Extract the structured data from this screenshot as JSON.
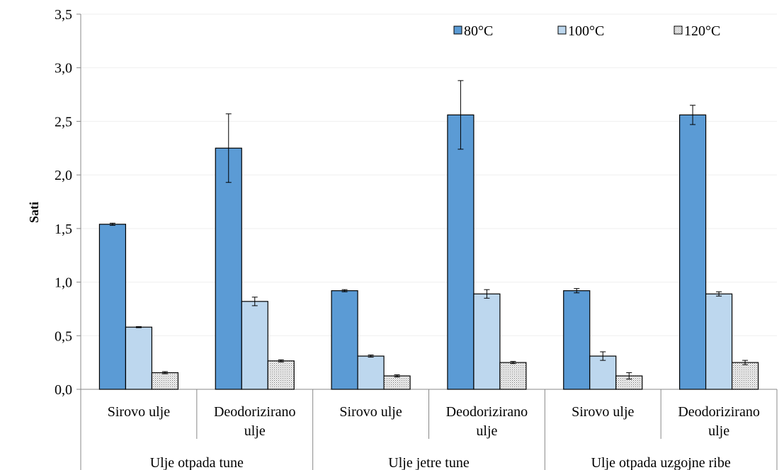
{
  "chart_data": {
    "type": "bar",
    "ylabel": "Sati",
    "xlabel": "",
    "ylim": [
      0,
      3.5
    ],
    "yticks": [
      "0,0",
      "0,5",
      "1,0",
      "1,5",
      "2,0",
      "2,5",
      "3,0",
      "3,5"
    ],
    "ytick_values": [
      0,
      0.5,
      1.0,
      1.5,
      2.0,
      2.5,
      3.0,
      3.5
    ],
    "grid": true,
    "legend_position": "top-right",
    "groups": [
      {
        "label": "Ulje otpada tune",
        "categories": [
          [
            "Sirovo ulje"
          ],
          [
            "Deodorizirano",
            "ulje"
          ]
        ]
      },
      {
        "label": "Ulje jetre tune",
        "categories": [
          [
            "Sirovo ulje"
          ],
          [
            "Deodorizirano",
            "ulje"
          ]
        ]
      },
      {
        "label": "Ulje otpada uzgojne ribe",
        "categories": [
          [
            "Sirovo ulje"
          ],
          [
            "Deodorizirano",
            "ulje"
          ]
        ]
      }
    ],
    "series": [
      {
        "name": "80°C",
        "color": "#5b9bd5",
        "pattern": "solid",
        "values": [
          1.54,
          2.25,
          0.92,
          2.56,
          0.92,
          2.56
        ],
        "errors": [
          0.01,
          0.32,
          0.01,
          0.32,
          0.02,
          0.09
        ]
      },
      {
        "name": "100°C",
        "color": "#bdd7ee",
        "pattern": "solid",
        "values": [
          0.58,
          0.82,
          0.31,
          0.89,
          0.31,
          0.89
        ],
        "errors": [
          0.005,
          0.04,
          0.01,
          0.04,
          0.04,
          0.02
        ]
      },
      {
        "name": "120°C",
        "color": "#e8e8e8",
        "pattern": "dots",
        "values": [
          0.155,
          0.265,
          0.125,
          0.25,
          0.125,
          0.25
        ],
        "errors": [
          0.01,
          0.01,
          0.01,
          0.01,
          0.03,
          0.02
        ]
      }
    ]
  }
}
